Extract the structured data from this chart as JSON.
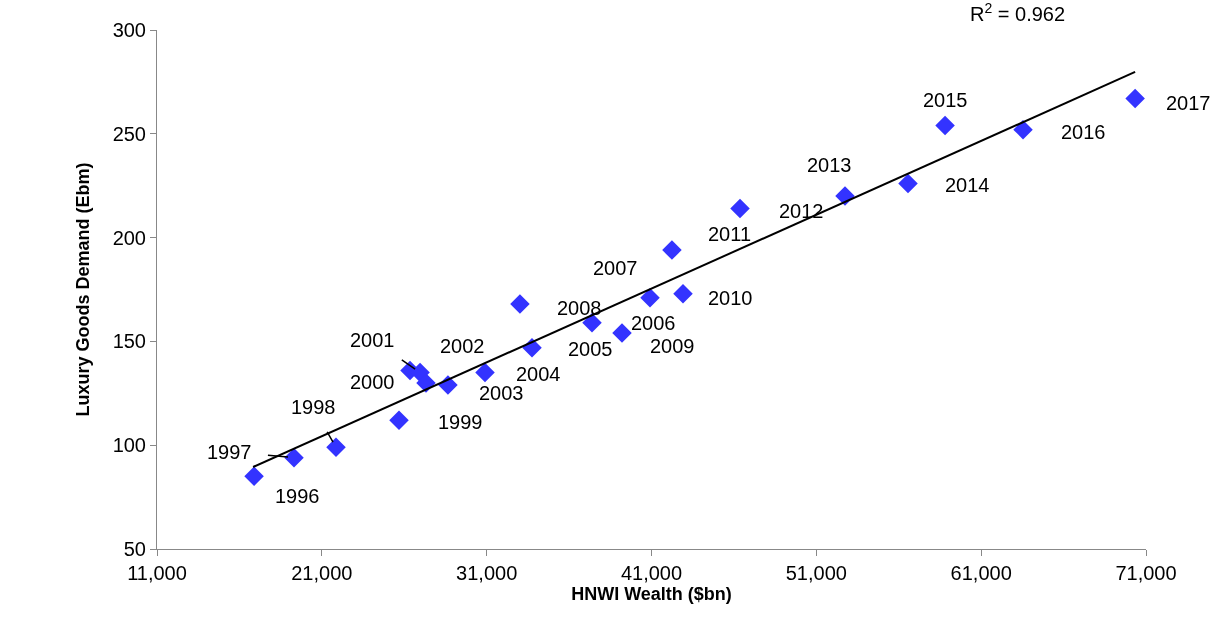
{
  "chart_data": {
    "type": "scatter",
    "xlabel": "HNWI Wealth ($bn)",
    "ylabel": "Luxury Goods Demand (Ebm)",
    "xlim": [
      11000,
      71000
    ],
    "xticks": [
      {
        "value": 11000,
        "label": "11,000"
      },
      {
        "value": 21000,
        "label": "21,000"
      },
      {
        "value": 31000,
        "label": "31,000"
      },
      {
        "value": 41000,
        "label": "41,000"
      },
      {
        "value": 51000,
        "label": "51,000"
      },
      {
        "value": 61000,
        "label": "61,000"
      },
      {
        "value": 71000,
        "label": "71,000"
      }
    ],
    "ylim": [
      50,
      300
    ],
    "yticks": [
      50,
      100,
      150,
      200,
      250,
      300
    ],
    "series": [
      {
        "marker": "diamond",
        "color": "#3333ff",
        "x": [
          16890,
          19310,
          21860,
          25680,
          26350,
          26960,
          27320,
          28650,
          30900,
          33750,
          37390,
          40910,
          33020,
          39210,
          42910,
          42240,
          46370,
          52740,
          56560,
          58810,
          63540,
          70340
        ],
        "values": [
          85,
          94,
          99,
          112,
          136,
          135,
          130,
          129,
          135,
          147,
          159,
          171,
          168,
          154,
          173,
          194,
          214,
          220,
          226,
          254,
          252,
          267
        ]
      },
      {
        "type": "line",
        "marker": "none",
        "line_style": "solid",
        "color": "#000000",
        "x": [
          16830,
          70340
        ],
        "values": [
          89.5,
          279.8
        ]
      }
    ],
    "annotations": [
      {
        "text": "1996",
        "x": 16890,
        "y": 85
      },
      {
        "text": "1997",
        "x": 19310,
        "y": 94
      },
      {
        "text": "1998",
        "x": 21860,
        "y": 99
      },
      {
        "text": "1999",
        "x": 25680,
        "y": 112
      },
      {
        "text": "2000",
        "x": 26350,
        "y": 136
      },
      {
        "text": "2001",
        "x": 26960,
        "y": 135
      },
      {
        "text": "2002",
        "x": 27320,
        "y": 130
      },
      {
        "text": "2003",
        "x": 28650,
        "y": 129
      },
      {
        "text": "2004",
        "x": 30900,
        "y": 135
      },
      {
        "text": "2005",
        "x": 33750,
        "y": 147
      },
      {
        "text": "2006",
        "x": 37390,
        "y": 159
      },
      {
        "text": "2007",
        "x": 40910,
        "y": 171
      },
      {
        "text": "2008",
        "x": 33020,
        "y": 168
      },
      {
        "text": "2009",
        "x": 39210,
        "y": 154
      },
      {
        "text": "2010",
        "x": 42910,
        "y": 173
      },
      {
        "text": "2011",
        "x": 42240,
        "y": 194
      },
      {
        "text": "2012",
        "x": 46370,
        "y": 214
      },
      {
        "text": "2013",
        "x": 52740,
        "y": 220
      },
      {
        "text": "2014",
        "x": 56560,
        "y": 226
      },
      {
        "text": "2015",
        "x": 58810,
        "y": 254
      },
      {
        "text": "2016",
        "x": 63540,
        "y": 252
      },
      {
        "text": "2017",
        "x": 70340,
        "y": 267
      },
      "R$^{2}$ = 0.962"
    ]
  }
}
